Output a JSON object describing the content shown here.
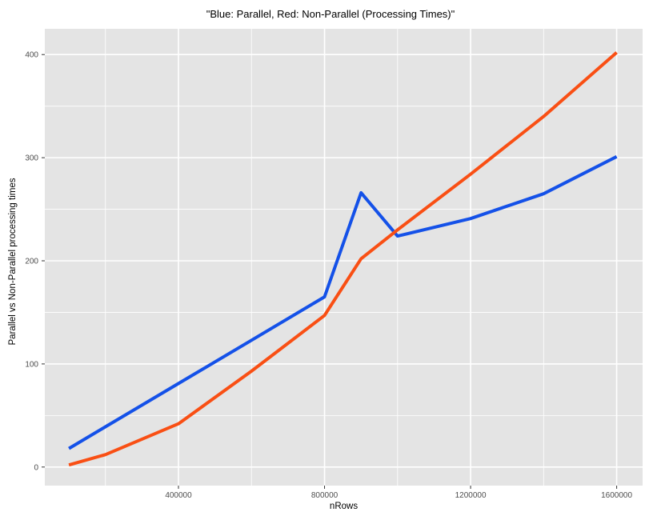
{
  "window": {
    "background": "#ffffff"
  },
  "chart_data": {
    "type": "line",
    "title": "\"Blue: Parallel, Red: Non-Parallel (Processing Times)\"",
    "xlabel": "nRows",
    "ylabel": "Parallel vs Non-Parallel processing times",
    "x": [
      100000,
      200000,
      400000,
      600000,
      800000,
      900000,
      1000000,
      1200000,
      1400000,
      1600000
    ],
    "series": [
      {
        "name": "Parallel",
        "color": "#1451e8",
        "values": [
          18,
          39,
          81,
          123,
          165,
          266,
          224,
          241,
          265,
          301
        ]
      },
      {
        "name": "Non-Parallel",
        "color": "#f94f14",
        "values": [
          2,
          12,
          42,
          93,
          147,
          202,
          230,
          284,
          340,
          402
        ]
      }
    ],
    "x_axis": {
      "range": [
        34000,
        1671000
      ],
      "ticks": [
        400000,
        800000,
        1200000,
        1600000
      ],
      "tick_labels": [
        "400000",
        "800000",
        "1200000",
        "1600000"
      ],
      "minor_ticks": [
        200000,
        600000,
        1000000,
        1400000
      ]
    },
    "y_axis": {
      "range": [
        -18,
        425
      ],
      "ticks": [
        0,
        100,
        200,
        300,
        400
      ],
      "tick_labels": [
        "0",
        "100",
        "200",
        "300",
        "400"
      ],
      "minor_ticks": [
        50,
        150,
        250,
        350
      ]
    },
    "style": {
      "panel_bg": "#e4e4e4",
      "grid_color": "#ffffff",
      "tick_mark_color": "#333333",
      "tick_label_color": "#4d4d4d",
      "line_width": 4
    },
    "legend": "none",
    "grid": "on"
  }
}
